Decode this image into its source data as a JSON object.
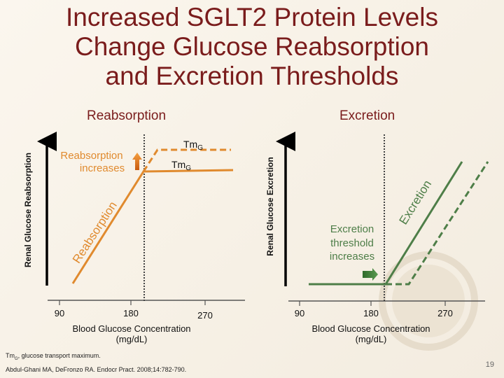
{
  "title": "Increased SGLT2 Protein Levels Change Glucose Reabsorption and Excretion Thresholds",
  "title_lines": [
    "Increased SGLT2 Protein Levels",
    "Change Glucose Reabsorption",
    "and Excretion Thresholds"
  ],
  "colors": {
    "title": "#7a1c1c",
    "reabsorption": "#e08a2e",
    "excretion": "#4e7e48"
  },
  "left_panel": {
    "heading": "Reabsorption",
    "ylabel": "Renal Glucose Reabsorption",
    "xlabel_line1": "Blood Glucose Concentration",
    "xlabel_line2": "(mg/dL)",
    "xticks": [
      "90",
      "180",
      "270"
    ],
    "curve_label": "Reabsorption",
    "annotation_line1": "Reabsorption",
    "annotation_line2": "increases",
    "tm_label": "Tm",
    "tm_sub": "G",
    "threshold": 200
  },
  "right_panel": {
    "heading": "Excretion",
    "ylabel": "Renal Glucose Excretion",
    "xlabel_line1": "Blood Glucose Concentration",
    "xlabel_line2": "(mg/dL)",
    "xticks": [
      "90",
      "180",
      "270"
    ],
    "curve_label": "Excretion",
    "annotation_line1": "Excretion",
    "annotation_line2": "threshold",
    "annotation_line3": "increases",
    "threshold": 200
  },
  "footnote_tm": "Tm",
  "footnote_sub": "G",
  "footnote_text": ", glucose transport maximum.",
  "citation": "Abdul-Ghani MA, DeFronzo RA. Endocr Pract. 2008;14:782-790.",
  "page_number": "19"
}
